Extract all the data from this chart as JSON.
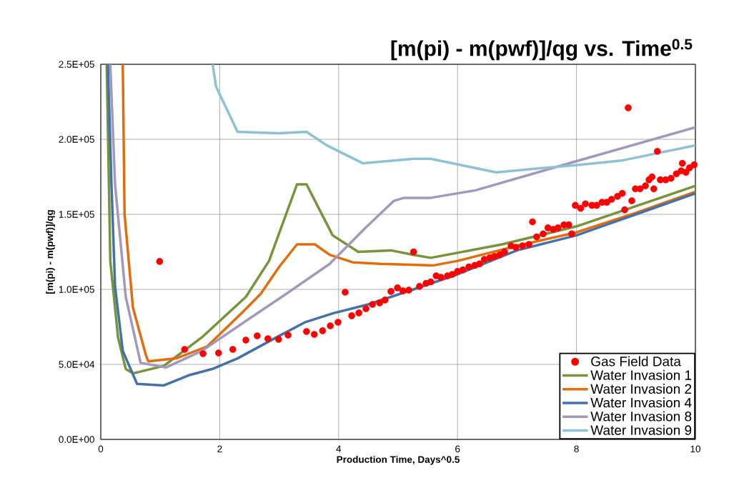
{
  "chart_data": {
    "type": "line",
    "title": "[m(pi) - m(pwf)]/qg vs. Time$^{0.5}$",
    "xlabel": "Production Time, Days^0.5",
    "ylabel": "[m(pi) - m(pwf)]/qg",
    "xlim": [
      0,
      10
    ],
    "xticks": [
      0,
      2,
      4,
      6,
      8,
      10
    ],
    "ylim": [
      0,
      250000
    ],
    "yticks": [
      {
        "value": 0,
        "label": "0.0E+00"
      },
      {
        "value": 50000,
        "label": "5.0E+04"
      },
      {
        "value": 100000,
        "label": "1.0E+05"
      },
      {
        "value": 150000,
        "label": "1.5E+05"
      },
      {
        "value": 200000,
        "label": "2.0E+05"
      },
      {
        "value": 250000,
        "label": "2.5E+05"
      }
    ],
    "grid": true,
    "legend": "bottom right",
    "series": [
      {
        "name": "Gas Field Data",
        "type": "scatter",
        "marker": "circle",
        "color": "#ff0000",
        "x": [
          0.99,
          1.41,
          1.72,
          1.98,
          2.22,
          2.44,
          2.63,
          2.81,
          2.99,
          3.15,
          3.46,
          3.59,
          3.73,
          3.86,
          3.99,
          4.11,
          4.22,
          4.34,
          4.46,
          4.57,
          4.69,
          4.78,
          4.88,
          4.99,
          5.08,
          5.18,
          5.26,
          5.36,
          5.47,
          5.55,
          5.64,
          5.72,
          5.83,
          5.91,
          6.0,
          6.09,
          6.19,
          6.29,
          6.37,
          6.45,
          6.54,
          6.62,
          6.71,
          6.79,
          6.9,
          6.98,
          7.09,
          7.2,
          7.26,
          7.33,
          7.44,
          7.52,
          7.61,
          7.69,
          7.79,
          7.87,
          7.92,
          7.98,
          8.07,
          8.15,
          8.26,
          8.34,
          8.43,
          8.51,
          8.59,
          8.69,
          8.77,
          8.81,
          8.87,
          8.93,
          8.99,
          9.07,
          9.16,
          9.22,
          9.27,
          9.3,
          9.36,
          9.41,
          9.5,
          9.59,
          9.68,
          9.76,
          9.78,
          9.84,
          9.9,
          9.98
        ],
        "values": [
          118600,
          60000,
          57100,
          57600,
          60000,
          66200,
          69000,
          67100,
          66700,
          69500,
          71900,
          70000,
          72400,
          75700,
          78100,
          98100,
          82400,
          84300,
          87100,
          90000,
          91000,
          92900,
          98600,
          101000,
          99000,
          99500,
          125000,
          102000,
          104000,
          105000,
          109000,
          108000,
          109000,
          110000,
          112000,
          113000,
          115000,
          116000,
          117000,
          120000,
          121000,
          122000,
          123000,
          125000,
          129000,
          128000,
          129000,
          130000,
          145000,
          135000,
          137000,
          141000,
          140000,
          141000,
          143000,
          143000,
          137000,
          156000,
          154000,
          157000,
          156000,
          156000,
          158000,
          158000,
          160000,
          162000,
          164000,
          153000,
          221000,
          159000,
          167000,
          167000,
          169000,
          173000,
          175000,
          167000,
          192000,
          173000,
          173000,
          174000,
          177000,
          179000,
          184000,
          178000,
          181000,
          183000
        ]
      },
      {
        "name": "Water Invasion 1",
        "color": "#77933c",
        "x": [
          0.1,
          0.16,
          0.29,
          0.42,
          0.54,
          1.06,
          1.7,
          2.44,
          2.83,
          3.3,
          3.46,
          3.9,
          4.33,
          4.88,
          5.26,
          5.55,
          6.75,
          8.0,
          10.0
        ],
        "values": [
          250000,
          119000,
          68000,
          47000,
          44000,
          49000,
          68000,
          95000,
          119000,
          170000,
          170000,
          136000,
          125000,
          126000,
          123000,
          121000,
          130000,
          142000,
          169000
        ]
      },
      {
        "name": "Water Invasion 2",
        "color": "#e46c0a",
        "x": [
          0.37,
          0.4,
          0.54,
          0.76,
          0.8,
          1.27,
          1.79,
          2.39,
          2.69,
          3.0,
          3.3,
          3.6,
          3.85,
          4.24,
          4.7,
          5.6,
          6.0,
          7.0,
          8.0,
          9.0,
          10.0
        ],
        "values": [
          250000,
          150000,
          88000,
          56000,
          52000,
          54000,
          62000,
          85000,
          97000,
          115000,
          130000,
          130000,
          123000,
          118000,
          117000,
          116000,
          119000,
          129000,
          138000,
          151000,
          165000
        ]
      },
      {
        "name": "Water Invasion 4",
        "color": "#4372aa",
        "x": [
          0.12,
          0.18,
          0.24,
          0.37,
          0.61,
          1.06,
          1.5,
          1.88,
          2.3,
          3.0,
          3.43,
          3.9,
          4.5,
          5.26,
          6.0,
          6.5,
          7.0,
          7.5,
          8.0,
          8.5,
          9.0,
          9.5,
          10.0
        ],
        "values": [
          250000,
          170000,
          102000,
          59000,
          37000,
          36000,
          43000,
          47000,
          54000,
          69000,
          78000,
          84000,
          90000,
          100000,
          110000,
          118000,
          126000,
          131000,
          136000,
          143000,
          150000,
          157000,
          164000
        ]
      },
      {
        "name": "Water Invasion 8",
        "color": "#a397bd",
        "x": [
          0.16,
          0.24,
          0.42,
          0.67,
          1.1,
          1.7,
          2.48,
          3.12,
          3.85,
          4.45,
          4.93,
          5.1,
          5.55,
          6.3,
          7.96,
          10.0
        ],
        "values": [
          250000,
          170000,
          95000,
          51000,
          48000,
          59000,
          80000,
          97000,
          117000,
          141000,
          159000,
          161000,
          161000,
          166000,
          185000,
          208000
        ]
      },
      {
        "name": "Water Invasion 9",
        "color": "#8cc2d4",
        "x": [
          1.88,
          1.94,
          2.3,
          3.0,
          3.46,
          3.8,
          4.41,
          5.26,
          5.55,
          6.65,
          8.04,
          8.78,
          10.0
        ],
        "values": [
          250000,
          235000,
          205000,
          204000,
          205000,
          196000,
          184000,
          187000,
          187000,
          178000,
          183000,
          186000,
          196000
        ]
      }
    ]
  }
}
